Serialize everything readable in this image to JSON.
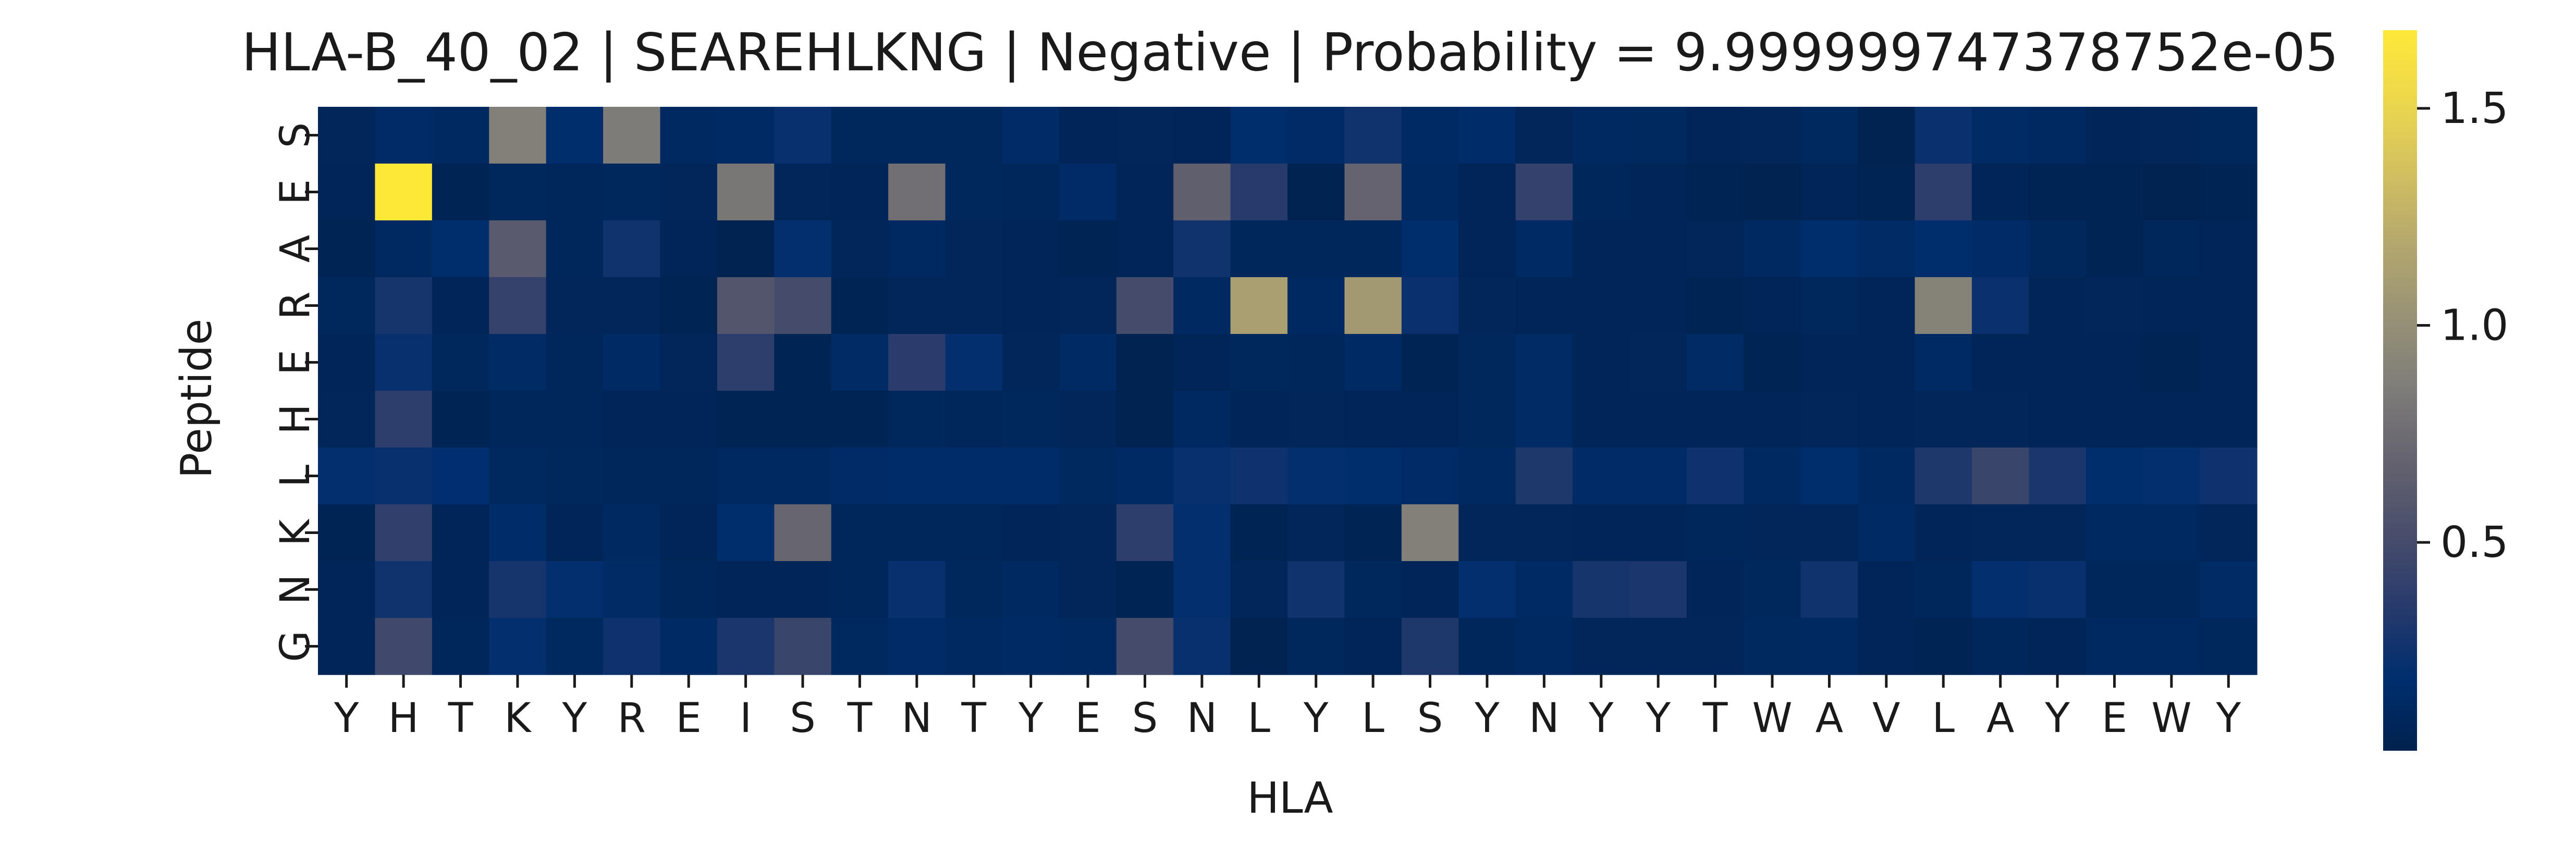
{
  "chart_data": {
    "type": "heatmap",
    "title": "HLA-B_40_02 | SEAREHLKNG | Negative | Probability = 9.999999747378752e-05",
    "xlabel": "HLA",
    "ylabel": "Peptide",
    "x_tick_labels": [
      "Y",
      "H",
      "T",
      "K",
      "Y",
      "R",
      "E",
      "I",
      "S",
      "T",
      "N",
      "T",
      "Y",
      "E",
      "S",
      "N",
      "L",
      "Y",
      "L",
      "S",
      "Y",
      "N",
      "Y",
      "Y",
      "T",
      "W",
      "A",
      "V",
      "L",
      "A",
      "Y",
      "E",
      "W",
      "Y"
    ],
    "y_tick_labels": [
      "S",
      "E",
      "A",
      "R",
      "E",
      "H",
      "L",
      "K",
      "N",
      "G"
    ],
    "colorbar": {
      "colormap": "cividis",
      "range": [
        0.02,
        1.68
      ],
      "ticks": [
        0.5,
        1.0,
        1.5
      ],
      "tick_labels": [
        "0.5",
        "1.0",
        "1.5"
      ]
    },
    "values": [
      [
        0.08,
        0.15,
        0.12,
        0.88,
        0.18,
        0.85,
        0.12,
        0.13,
        0.22,
        0.1,
        0.1,
        0.1,
        0.15,
        0.06,
        0.08,
        0.06,
        0.17,
        0.15,
        0.26,
        0.13,
        0.16,
        0.08,
        0.12,
        0.11,
        0.06,
        0.08,
        0.11,
        0.04,
        0.23,
        0.14,
        0.12,
        0.07,
        0.08,
        0.1
      ],
      [
        0.06,
        1.68,
        0.05,
        0.1,
        0.09,
        0.1,
        0.08,
        0.82,
        0.08,
        0.07,
        0.77,
        0.1,
        0.09,
        0.15,
        0.06,
        0.66,
        0.35,
        0.04,
        0.69,
        0.12,
        0.06,
        0.41,
        0.09,
        0.07,
        0.05,
        0.04,
        0.06,
        0.05,
        0.38,
        0.07,
        0.05,
        0.05,
        0.04,
        0.05
      ],
      [
        0.05,
        0.12,
        0.17,
        0.62,
        0.09,
        0.25,
        0.06,
        0.04,
        0.2,
        0.08,
        0.12,
        0.08,
        0.07,
        0.05,
        0.07,
        0.25,
        0.09,
        0.09,
        0.09,
        0.17,
        0.06,
        0.13,
        0.07,
        0.07,
        0.08,
        0.12,
        0.18,
        0.14,
        0.18,
        0.15,
        0.1,
        0.05,
        0.09,
        0.06
      ],
      [
        0.1,
        0.28,
        0.06,
        0.42,
        0.08,
        0.08,
        0.05,
        0.58,
        0.5,
        0.05,
        0.08,
        0.08,
        0.07,
        0.08,
        0.5,
        0.12,
        1.12,
        0.12,
        1.08,
        0.23,
        0.08,
        0.07,
        0.07,
        0.07,
        0.05,
        0.06,
        0.1,
        0.06,
        0.9,
        0.23,
        0.06,
        0.08,
        0.07,
        0.06
      ],
      [
        0.07,
        0.22,
        0.1,
        0.14,
        0.09,
        0.13,
        0.08,
        0.38,
        0.05,
        0.14,
        0.37,
        0.2,
        0.08,
        0.13,
        0.04,
        0.07,
        0.1,
        0.09,
        0.13,
        0.05,
        0.1,
        0.14,
        0.07,
        0.08,
        0.14,
        0.05,
        0.06,
        0.07,
        0.13,
        0.07,
        0.07,
        0.06,
        0.05,
        0.06
      ],
      [
        0.08,
        0.38,
        0.05,
        0.09,
        0.09,
        0.06,
        0.06,
        0.05,
        0.05,
        0.05,
        0.1,
        0.09,
        0.1,
        0.08,
        0.04,
        0.12,
        0.07,
        0.08,
        0.06,
        0.06,
        0.1,
        0.14,
        0.07,
        0.06,
        0.06,
        0.07,
        0.08,
        0.07,
        0.08,
        0.08,
        0.07,
        0.07,
        0.07,
        0.07
      ],
      [
        0.2,
        0.22,
        0.19,
        0.11,
        0.1,
        0.09,
        0.09,
        0.12,
        0.12,
        0.15,
        0.16,
        0.16,
        0.16,
        0.11,
        0.13,
        0.22,
        0.24,
        0.2,
        0.18,
        0.15,
        0.12,
        0.32,
        0.15,
        0.15,
        0.24,
        0.12,
        0.18,
        0.12,
        0.32,
        0.45,
        0.3,
        0.18,
        0.2,
        0.24
      ],
      [
        0.05,
        0.4,
        0.07,
        0.16,
        0.07,
        0.12,
        0.07,
        0.17,
        0.7,
        0.09,
        0.09,
        0.09,
        0.07,
        0.08,
        0.38,
        0.2,
        0.05,
        0.08,
        0.05,
        0.88,
        0.08,
        0.08,
        0.07,
        0.07,
        0.09,
        0.08,
        0.08,
        0.13,
        0.06,
        0.08,
        0.08,
        0.12,
        0.12,
        0.08
      ],
      [
        0.06,
        0.25,
        0.06,
        0.28,
        0.2,
        0.14,
        0.09,
        0.07,
        0.07,
        0.09,
        0.22,
        0.1,
        0.12,
        0.08,
        0.05,
        0.2,
        0.08,
        0.26,
        0.1,
        0.06,
        0.2,
        0.13,
        0.28,
        0.3,
        0.07,
        0.1,
        0.26,
        0.07,
        0.09,
        0.2,
        0.22,
        0.09,
        0.09,
        0.14
      ],
      [
        0.07,
        0.48,
        0.09,
        0.2,
        0.11,
        0.24,
        0.13,
        0.3,
        0.45,
        0.11,
        0.15,
        0.12,
        0.13,
        0.12,
        0.5,
        0.22,
        0.04,
        0.1,
        0.06,
        0.32,
        0.09,
        0.12,
        0.08,
        0.08,
        0.08,
        0.11,
        0.12,
        0.07,
        0.05,
        0.09,
        0.07,
        0.12,
        0.12,
        0.1
      ]
    ]
  }
}
